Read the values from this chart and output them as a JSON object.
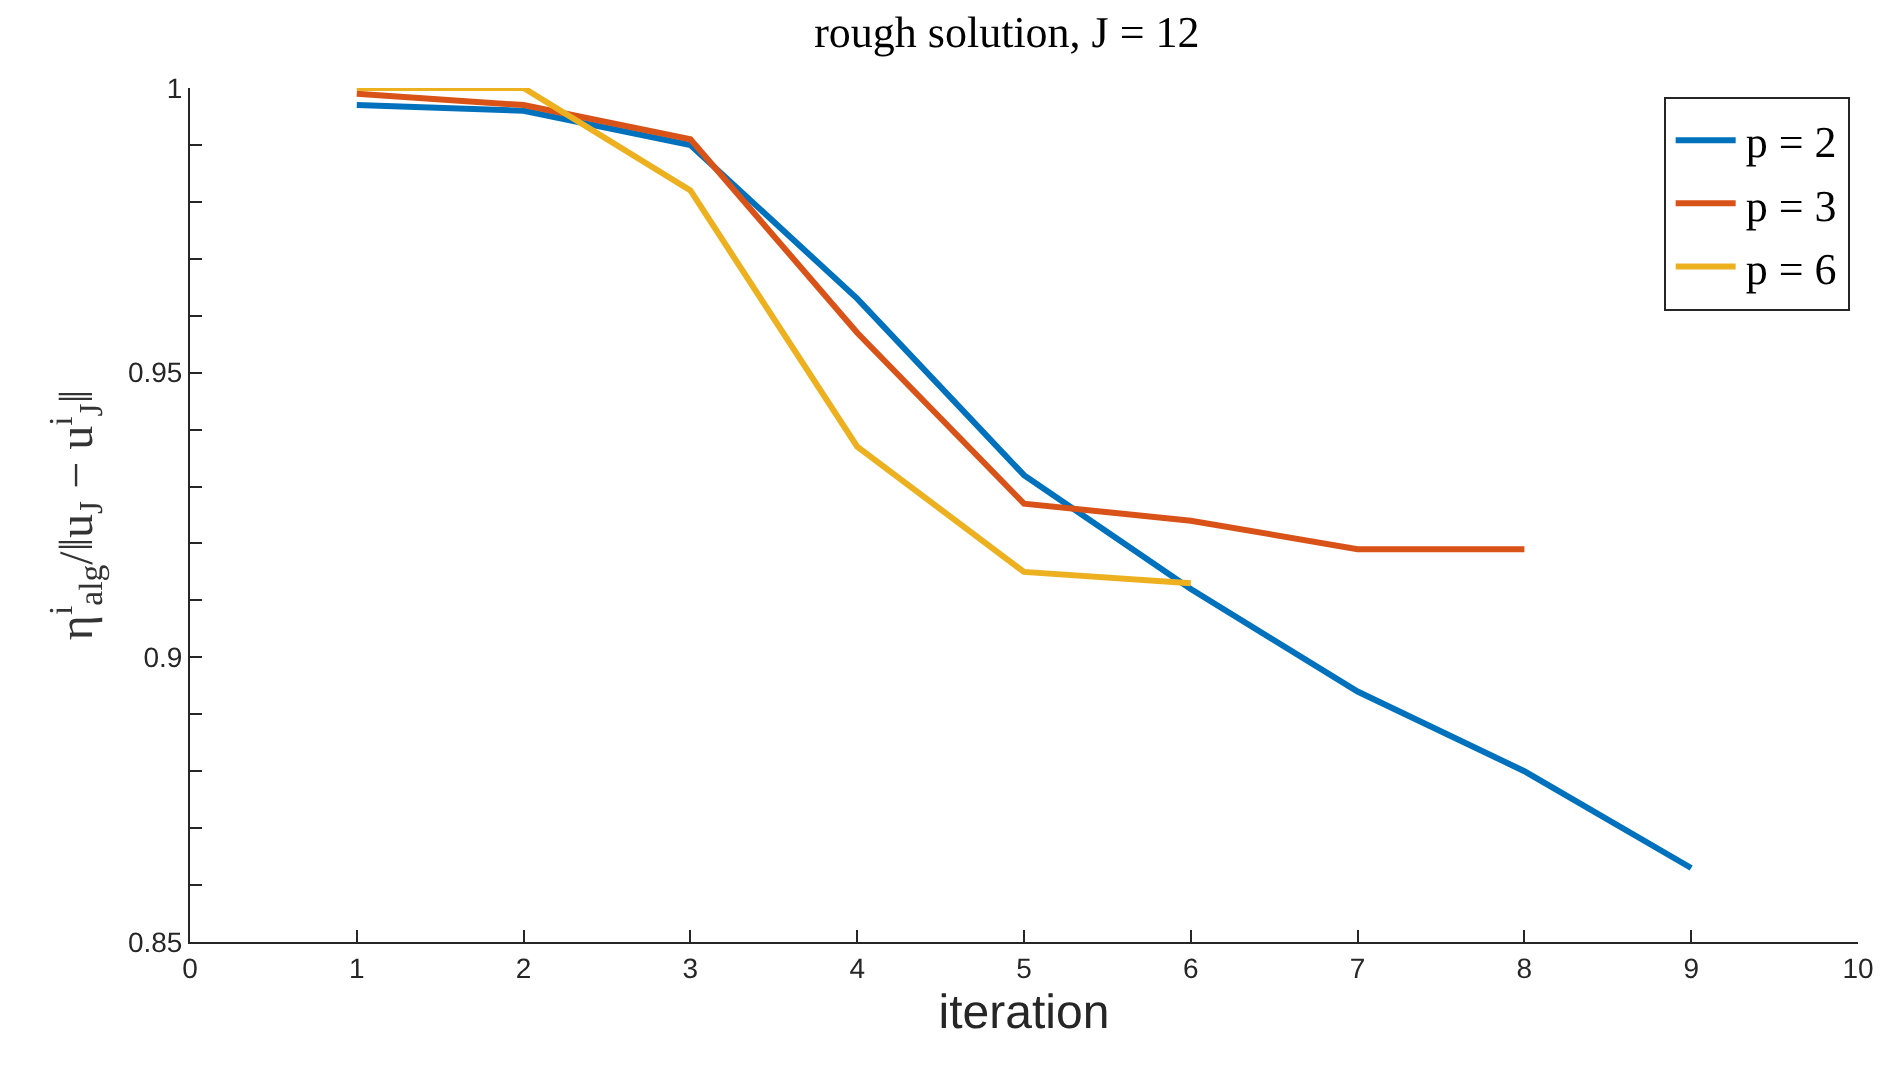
{
  "chart_data": {
    "type": "line",
    "title": "rough solution, J = 12",
    "xlabel": "iteration",
    "ylabel": "η$^{i}$$_{alg}$/‖u$_{J}$ − u$^{i}$$_{J}$‖",
    "xlim": [
      0,
      10
    ],
    "xticks": [
      0,
      1,
      2,
      3,
      4,
      5,
      6,
      7,
      8,
      9,
      10
    ],
    "ylim": [
      0.85,
      1
    ],
    "yticks": [
      0.85,
      {
        "value": 0.86,
        "label": null
      },
      {
        "value": 0.87,
        "label": null
      },
      {
        "value": 0.88,
        "label": null
      },
      {
        "value": 0.89,
        "label": null
      },
      0.9,
      {
        "value": 0.91,
        "label": null
      },
      {
        "value": 0.92,
        "label": null
      },
      {
        "value": 0.93,
        "label": null
      },
      {
        "value": 0.94,
        "label": null
      },
      0.95,
      {
        "value": 0.96,
        "label": null
      },
      {
        "value": 0.97,
        "label": null
      },
      {
        "value": 0.98,
        "label": null
      },
      {
        "value": 0.99,
        "label": null
      },
      1
    ],
    "grid": false,
    "legend": "top right",
    "line_style": "solid",
    "marker": "none",
    "series": [
      {
        "name": "p = 2",
        "color": "#0072bd",
        "x": [
          1,
          2,
          3,
          4,
          5,
          6,
          7,
          8,
          9
        ],
        "values": [
          0.997,
          0.996,
          0.99,
          0.963,
          0.932,
          0.912,
          0.894,
          0.88,
          0.863
        ]
      },
      {
        "name": "p = 3",
        "color": "#d95319",
        "x": [
          1,
          2,
          3,
          4,
          5,
          6,
          7,
          8
        ],
        "values": [
          0.999,
          0.997,
          0.991,
          0.957,
          0.927,
          0.924,
          0.919,
          0.919
        ]
      },
      {
        "name": "p = 6",
        "color": "#edb120",
        "x": [
          1,
          2,
          3,
          4,
          5,
          6
        ],
        "values": [
          1.0,
          1.0,
          0.982,
          0.937,
          0.915,
          0.913
        ]
      }
    ]
  }
}
